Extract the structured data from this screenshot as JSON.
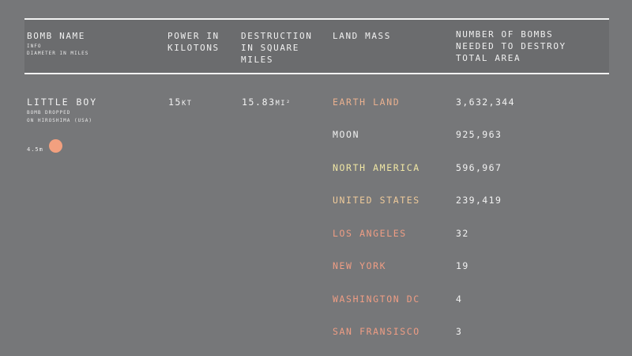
{
  "header": {
    "bomb_name": "BOMB NAME",
    "info": "INFO",
    "diameter": "DIAMETER IN MILES",
    "power": "POWER IN\nKILOTONS",
    "destruction": "DESTRUCTION\nIN SQUARE\nMILES",
    "land_mass": "LAND MASS",
    "number_of_bombs": "NUMBER OF BOMBS\nNEEDED TO DESTROY\nTOTAL AREA"
  },
  "bomb": {
    "name": "LITTLE BOY",
    "note": "BOMB DROPPED\nON HIROSHIMA (USA)",
    "diameter_label": "4.5m",
    "power_value": "15",
    "power_unit": "kt",
    "destruction_value": "15.83",
    "destruction_unit": "mi²",
    "dot_color": "#f2a07f"
  },
  "rows": [
    {
      "land": "EARTH LAND",
      "count": "3,632,344",
      "color": "#e9b08f"
    },
    {
      "land": "MOON",
      "count": "925,963",
      "color": "#efefef"
    },
    {
      "land": "NORTH AMERICA",
      "count": "596,967",
      "color": "#efe6a4"
    },
    {
      "land": "UNITED STATES",
      "count": "239,419",
      "color": "#eeca9a"
    },
    {
      "land": "LOS ANGELES",
      "count": "32",
      "color": "#ef9d84"
    },
    {
      "land": "NEW YORK",
      "count": "19",
      "color": "#ef9d84"
    },
    {
      "land": "WASHINGTON DC",
      "count": "4",
      "color": "#ef9d84"
    },
    {
      "land": "SAN FRANSISCO",
      "count": "3",
      "color": "#ef9d84"
    }
  ]
}
